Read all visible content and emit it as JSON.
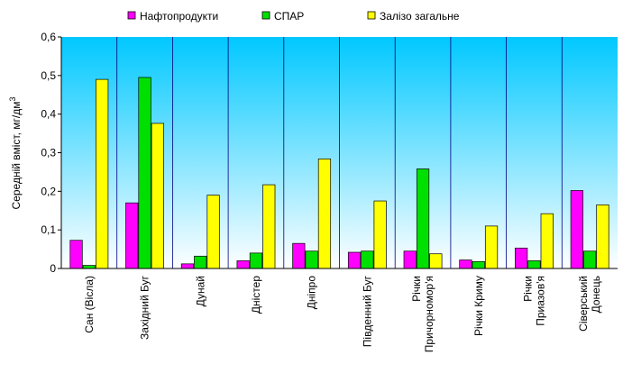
{
  "chart_data": {
    "type": "bar",
    "title": "",
    "xlabel": "",
    "ylabel": "Середній вміст, мг/дм",
    "ylabel_superscript": "3",
    "ylim": [
      0,
      0.6
    ],
    "yticks": [
      "0",
      "0,1",
      "0,2",
      "0,3",
      "0,4",
      "0,5",
      "0,6"
    ],
    "categories": [
      "Сан (Вісла)",
      "Західний Буг",
      "Дунай",
      "Дністер",
      "Дніпро",
      "Південний Буг",
      "Річки Причорномор'я",
      "Річки Криму",
      "Річки Приазов'я",
      "Сіверський Донець"
    ],
    "category_lines": [
      [
        "Сан (Вісла)"
      ],
      [
        "Західний Буг"
      ],
      [
        "Дунай"
      ],
      [
        "Дністер"
      ],
      [
        "Дніпро"
      ],
      [
        "Південний Буг"
      ],
      [
        "Річки",
        "Причорномор'я"
      ],
      [
        "Річки Криму"
      ],
      [
        "Річки",
        "Приазов'я"
      ],
      [
        "Сіверський",
        "Донець"
      ]
    ],
    "series": [
      {
        "name": "Нафтопродукти",
        "color": "#ff00ff",
        "values": [
          0.073,
          0.17,
          0.012,
          0.02,
          0.065,
          0.042,
          0.045,
          0.022,
          0.053,
          0.202
        ]
      },
      {
        "name": "СПАР",
        "color": "#00e000",
        "values": [
          0.008,
          0.495,
          0.032,
          0.04,
          0.045,
          0.045,
          0.258,
          0.018,
          0.02,
          0.045
        ]
      },
      {
        "name": "Залізо загальне",
        "color": "#ffff00",
        "values": [
          0.49,
          0.376,
          0.19,
          0.217,
          0.284,
          0.175,
          0.038,
          0.11,
          0.142,
          0.165
        ]
      }
    ],
    "legend_position": "top",
    "grid": false,
    "plot_background": "gradient-cyan-to-white",
    "gradient_colors": [
      "#00c8ff",
      "#ffffff"
    ]
  }
}
